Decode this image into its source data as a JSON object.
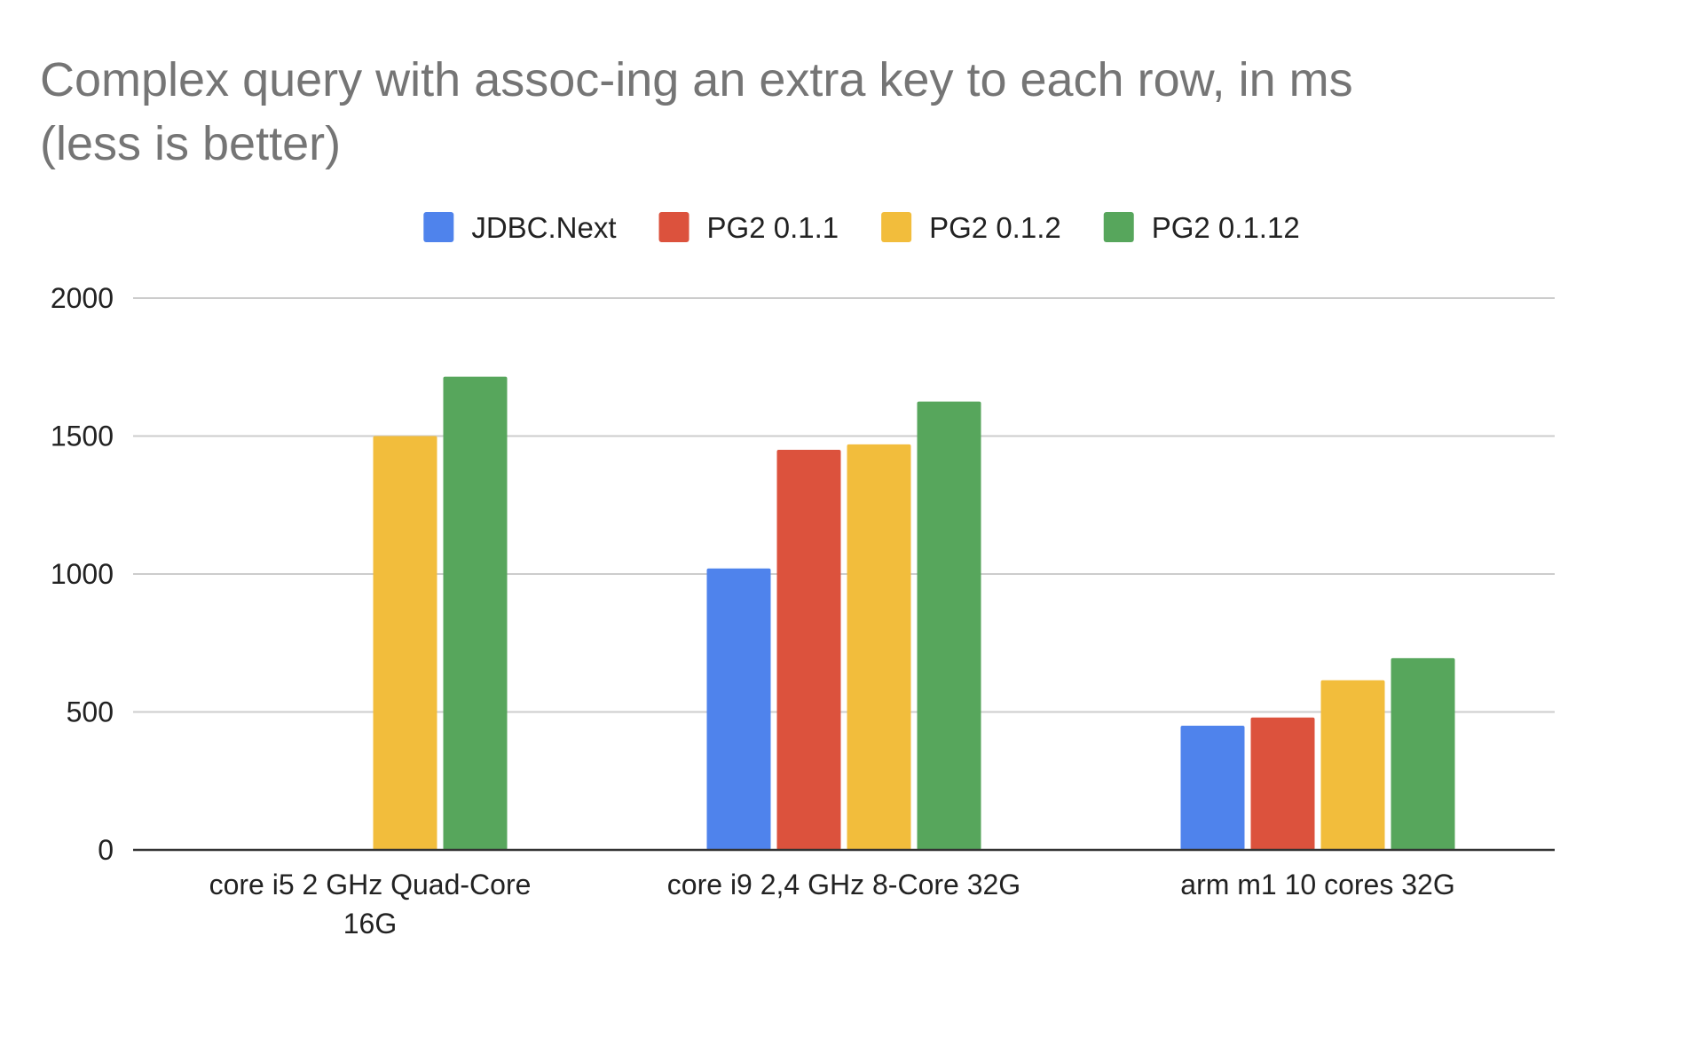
{
  "chart_data": {
    "type": "bar",
    "title_lines": [
      "Complex query with assoc-ing an extra key to each row, in ms",
      "(less is better)"
    ],
    "categories": [
      [
        "core i5 2 GHz Quad-Core",
        "16G"
      ],
      [
        "core i9 2,4 GHz 8-Core 32G"
      ],
      [
        "arm m1 10 cores 32G"
      ]
    ],
    "series": [
      {
        "name": "JDBC.Next",
        "color": "#4f83ec",
        "values": [
          null,
          1020,
          450
        ]
      },
      {
        "name": "PG2 0.1.1",
        "color": "#dc523d",
        "values": [
          null,
          1450,
          480
        ]
      },
      {
        "name": "PG2 0.1.2",
        "color": "#f2bd3c",
        "values": [
          1500,
          1470,
          615
        ]
      },
      {
        "name": "PG2 0.1.12",
        "color": "#57a65c",
        "values": [
          1715,
          1625,
          695
        ]
      }
    ],
    "yticks": [
      0,
      500,
      1000,
      1500,
      2000
    ],
    "ylim": [
      0,
      2000
    ],
    "grid": true,
    "legend": "top"
  }
}
